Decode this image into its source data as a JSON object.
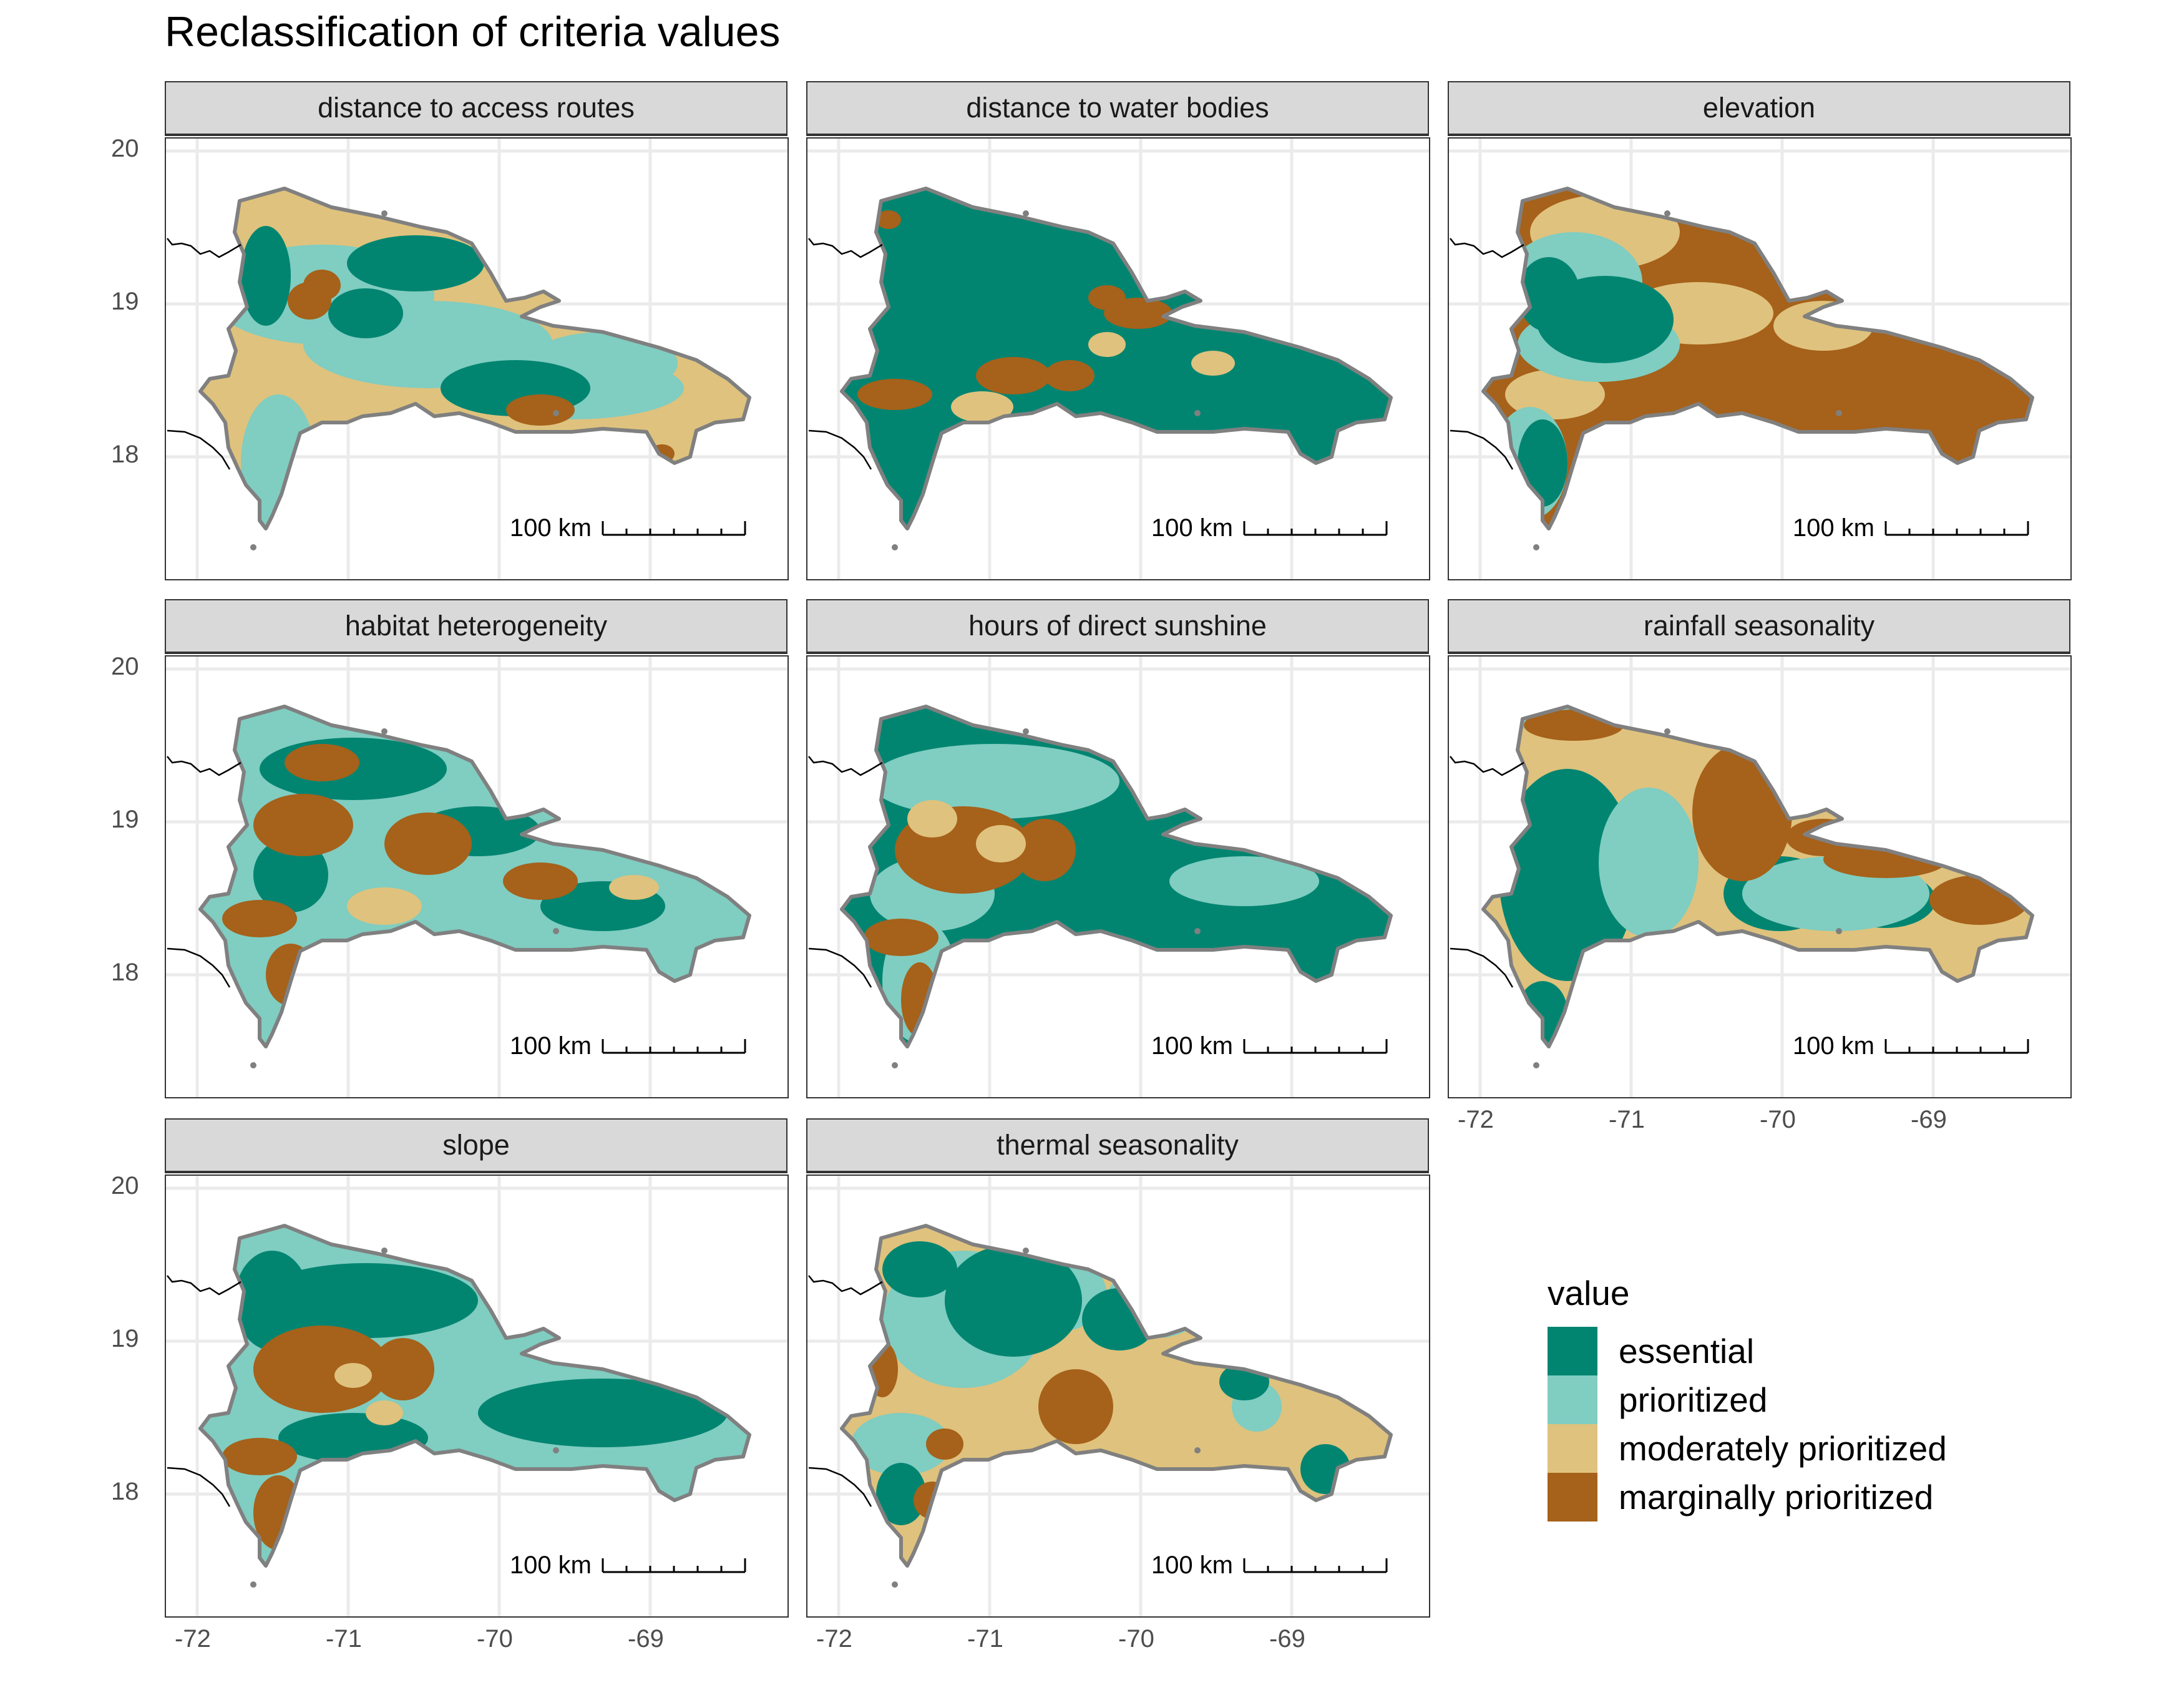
{
  "title": "Reclassification of criteria values",
  "colors": {
    "essential": "#018571",
    "prioritized": "#80cdc1",
    "moderately prioritized": "#dfc27d",
    "marginally prioritized": "#a6611a",
    "outline": "#808080",
    "grid": "#ebebeb"
  },
  "scalebar_label": "100 km",
  "axis": {
    "x_ticks": [
      "-72",
      "-71",
      "-70",
      "-69"
    ],
    "y_ticks": [
      "20",
      "19",
      "18"
    ]
  },
  "legend": {
    "title": "value",
    "items": [
      {
        "label": "essential",
        "color": "#018571"
      },
      {
        "label": "prioritized",
        "color": "#80cdc1"
      },
      {
        "label": "moderately prioritized",
        "color": "#dfc27d"
      },
      {
        "label": "marginally prioritized",
        "color": "#a6611a"
      }
    ]
  },
  "panels": [
    {
      "title": "distance to access routes",
      "base": "moderately prioritized",
      "patches": [
        "prioritized",
        "essential",
        "marginally prioritized"
      ]
    },
    {
      "title": "distance to water bodies",
      "base": "essential",
      "patches": [
        "marginally prioritized",
        "moderately prioritized"
      ]
    },
    {
      "title": "elevation",
      "base": "marginally prioritized",
      "patches": [
        "moderately prioritized",
        "prioritized",
        "essential"
      ]
    },
    {
      "title": "habitat heterogeneity",
      "base": "prioritized",
      "patches": [
        "essential",
        "marginally prioritized",
        "moderately prioritized"
      ]
    },
    {
      "title": "hours of direct sunshine",
      "base": "essential",
      "patches": [
        "prioritized",
        "marginally prioritized",
        "moderately prioritized"
      ]
    },
    {
      "title": "rainfall seasonality",
      "base": "moderately prioritized",
      "patches": [
        "essential",
        "prioritized",
        "marginally prioritized"
      ]
    },
    {
      "title": "slope",
      "base": "prioritized",
      "patches": [
        "essential",
        "marginally prioritized",
        "moderately prioritized"
      ]
    },
    {
      "title": "thermal seasonality",
      "base": "moderately prioritized",
      "patches": [
        "prioritized",
        "essential",
        "marginally prioritized"
      ]
    }
  ]
}
